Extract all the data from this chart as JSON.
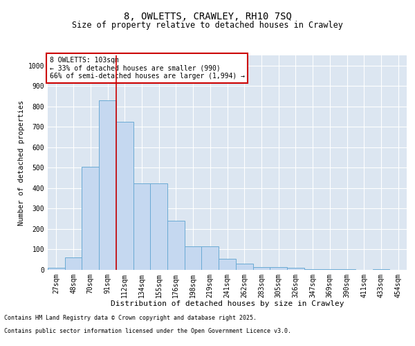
{
  "title": "8, OWLETTS, CRAWLEY, RH10 7SQ",
  "subtitle": "Size of property relative to detached houses in Crawley",
  "xlabel": "Distribution of detached houses by size in Crawley",
  "ylabel": "Number of detached properties",
  "categories": [
    "27sqm",
    "48sqm",
    "70sqm",
    "91sqm",
    "112sqm",
    "134sqm",
    "155sqm",
    "176sqm",
    "198sqm",
    "219sqm",
    "241sqm",
    "262sqm",
    "283sqm",
    "305sqm",
    "326sqm",
    "347sqm",
    "369sqm",
    "390sqm",
    "411sqm",
    "433sqm",
    "454sqm"
  ],
  "values": [
    10,
    60,
    505,
    830,
    725,
    425,
    425,
    240,
    115,
    115,
    55,
    30,
    15,
    15,
    10,
    5,
    5,
    5,
    0,
    5,
    0
  ],
  "bar_color": "#c5d8f0",
  "bar_edge_color": "#6aaad4",
  "vline_x": 3.5,
  "vline_color": "#cc0000",
  "annotation_box_text": "8 OWLETTS: 103sqm\n← 33% of detached houses are smaller (990)\n66% of semi-detached houses are larger (1,994) →",
  "annotation_box_color": "#cc0000",
  "ylim": [
    0,
    1050
  ],
  "yticks": [
    0,
    100,
    200,
    300,
    400,
    500,
    600,
    700,
    800,
    900,
    1000
  ],
  "footer_line1": "Contains HM Land Registry data © Crown copyright and database right 2025.",
  "footer_line2": "Contains public sector information licensed under the Open Government Licence v3.0.",
  "title_fontsize": 10,
  "subtitle_fontsize": 8.5,
  "xlabel_fontsize": 8,
  "ylabel_fontsize": 7.5,
  "tick_fontsize": 7,
  "annotation_fontsize": 7,
  "footer_fontsize": 6
}
